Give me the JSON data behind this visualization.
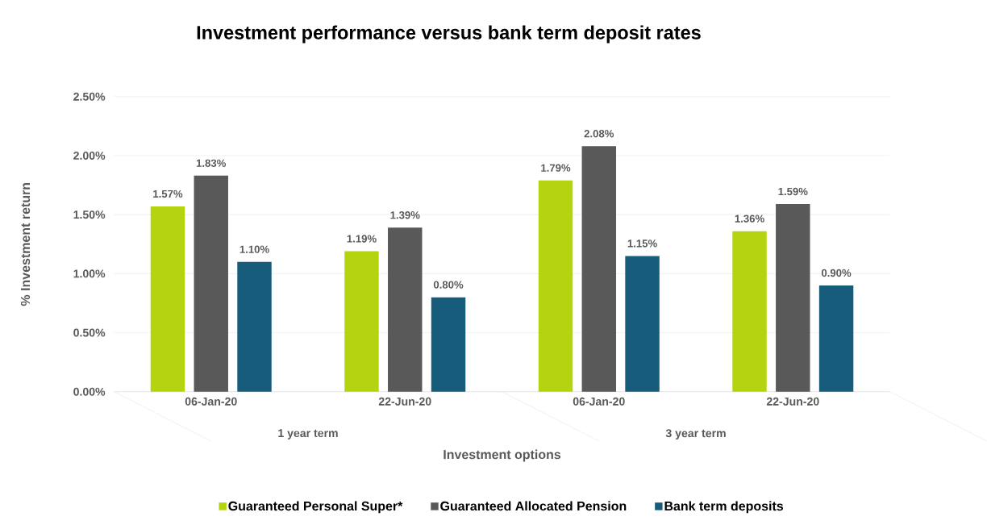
{
  "chart_data": {
    "type": "bar",
    "title": "Investment performance versus bank term deposit rates",
    "xlabel": "Investment options",
    "ylabel": "% Investment return",
    "categories": [
      "06-Jan-20",
      "22-Jun-20",
      "06-Jan-20",
      "22-Jun-20"
    ],
    "annotations": [
      "1 year term",
      "3 year term"
    ],
    "series": [
      {
        "name": "Guaranteed Personal Super*",
        "color": "#b5d30f",
        "values": [
          1.57,
          1.19,
          1.79,
          1.36
        ],
        "value_labels": [
          "1.57%",
          "1.19%",
          "1.79%",
          "1.36%"
        ]
      },
      {
        "name": "Guaranteed Allocated Pension",
        "color": "#595959",
        "values": [
          1.83,
          1.39,
          2.08,
          1.59
        ],
        "value_labels": [
          "1.83%",
          "1.39%",
          "2.08%",
          "1.59%"
        ]
      },
      {
        "name": "Bank term deposits",
        "color": "#185c7c",
        "values": [
          1.1,
          0.8,
          1.15,
          0.9
        ],
        "value_labels": [
          "1.10%",
          "0.80%",
          "1.15%",
          "0.90%"
        ]
      }
    ],
    "ylim": [
      0,
      2.5
    ],
    "yticks": [
      {
        "value": 0,
        "label": "0.00%"
      },
      {
        "value": 0.5,
        "label": "0.50%"
      },
      {
        "value": 1,
        "label": "1.00%"
      },
      {
        "value": 1.5,
        "label": "1.50%"
      },
      {
        "value": 2,
        "label": "2.00%"
      },
      {
        "value": 2.5,
        "label": "2.50%"
      }
    ],
    "grid": "y",
    "legend": "bottom"
  }
}
